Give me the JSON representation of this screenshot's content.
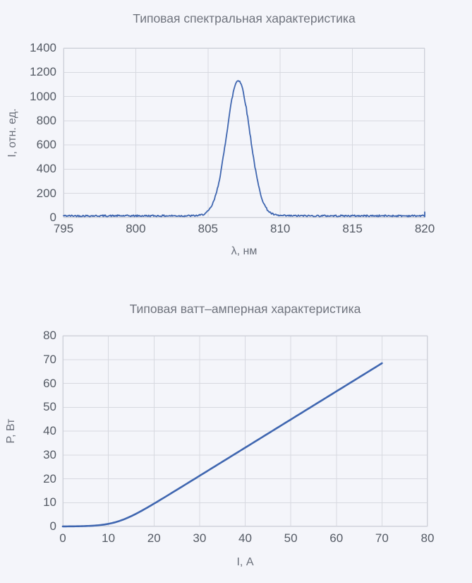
{
  "page": {
    "background": "#f4f5fa"
  },
  "chart_data": [
    {
      "type": "line",
      "title": "Типовая спектральная характеристика",
      "xlabel": "λ, нм",
      "ylabel": "I, отн. ед.",
      "xlim": [
        795,
        820
      ],
      "ylim": [
        0,
        1400
      ],
      "xticks": [
        795,
        800,
        805,
        810,
        815,
        820
      ],
      "yticks": [
        0,
        200,
        400,
        600,
        800,
        1000,
        1200,
        1400
      ],
      "grid": true,
      "legend": null,
      "line_color": "#3f66b0",
      "curve_model": {
        "model": "gaussian_noisy",
        "baseline": 15,
        "amplitude": 1120,
        "center": 807.1,
        "fwhm": 1.9,
        "noise_amplitude": 7,
        "end_spike_value": 45
      },
      "points": [
        [
          795,
          15
        ],
        [
          798,
          15
        ],
        [
          801,
          16
        ],
        [
          803,
          18
        ],
        [
          804,
          22
        ],
        [
          805,
          54
        ],
        [
          805.5,
          174
        ],
        [
          806,
          460
        ],
        [
          806.5,
          840
        ],
        [
          807,
          1126
        ],
        [
          807.1,
          1135
        ],
        [
          807.5,
          985
        ],
        [
          808,
          620
        ],
        [
          808.5,
          266
        ],
        [
          809,
          87
        ],
        [
          809.5,
          29
        ],
        [
          810,
          20
        ],
        [
          812,
          16
        ],
        [
          815,
          15
        ],
        [
          818,
          15
        ],
        [
          820,
          18
        ],
        [
          820.3,
          45
        ]
      ]
    },
    {
      "type": "line",
      "title": "Типовая ватт–амперная характеристика",
      "xlabel": "I, А",
      "ylabel": "P, Вт",
      "xlim": [
        0,
        80
      ],
      "ylim": [
        0,
        80
      ],
      "xticks": [
        0,
        10,
        20,
        30,
        40,
        50,
        60,
        70,
        80
      ],
      "yticks": [
        0,
        10,
        20,
        30,
        40,
        50,
        60,
        70,
        80
      ],
      "grid": true,
      "legend": null,
      "line_color": "#3f66b0",
      "curve_model": {
        "model": "softplus",
        "slope": 1.18,
        "threshold": 12,
        "smoothness": 2.5,
        "x_start": 0,
        "x_end": 70
      },
      "points": [
        [
          0,
          0
        ],
        [
          5,
          0.2
        ],
        [
          10,
          1.1
        ],
        [
          15,
          4.3
        ],
        [
          20,
          9.6
        ],
        [
          25,
          15.4
        ],
        [
          30,
          21.3
        ],
        [
          35,
          27.1
        ],
        [
          40,
          33.0
        ],
        [
          45,
          38.9
        ],
        [
          50,
          44.8
        ],
        [
          55,
          50.7
        ],
        [
          60,
          56.6
        ],
        [
          65,
          62.5
        ],
        [
          70,
          68.4
        ]
      ]
    }
  ],
  "style": {
    "grid_color": "#d7d9e0",
    "border_color": "#cdd0d9",
    "title_color": "#70747e",
    "tick_color": "#545a64"
  }
}
